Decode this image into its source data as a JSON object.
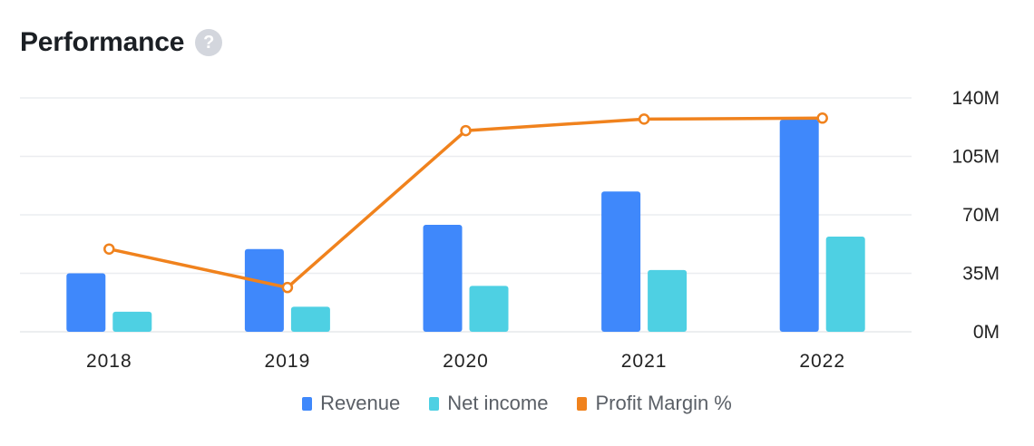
{
  "header": {
    "title": "Performance",
    "help_glyph": "?",
    "help_icon": "question-circle-icon"
  },
  "colors": {
    "revenue": "#3f88fb",
    "net_income": "#4ed0e3",
    "profit_margin": "#f0821d",
    "grid": "#ebedf0"
  },
  "chart_data": {
    "type": "bar",
    "categories": [
      "2018",
      "2019",
      "2020",
      "2021",
      "2022"
    ],
    "series": [
      {
        "name": "Revenue",
        "type": "bar",
        "axis": "right",
        "values": [
          35,
          49.5,
          64,
          84,
          127
        ]
      },
      {
        "name": "Net income",
        "type": "bar",
        "axis": "right",
        "values": [
          12,
          15,
          27.5,
          37,
          57
        ]
      },
      {
        "name": "Profit Margin %",
        "type": "line",
        "axis": "secondary",
        "values": [
          34.3,
          30.3,
          46.6,
          47.8,
          47.9
        ]
      }
    ],
    "y_ticks": [
      "0M",
      "35M",
      "70M",
      "105M",
      "140M"
    ],
    "y_tick_values": [
      0,
      35,
      70,
      105,
      140
    ],
    "ylim": [
      0,
      140
    ],
    "secondary_ylim": [
      25.7,
      50
    ],
    "y_axis_position": "right",
    "grid": true,
    "legend_position": "bottom-center"
  },
  "legend": [
    {
      "label": "Revenue",
      "color": "#3f88fb"
    },
    {
      "label": "Net income",
      "color": "#4ed0e3"
    },
    {
      "label": "Profit Margin %",
      "color": "#f0821d"
    }
  ]
}
